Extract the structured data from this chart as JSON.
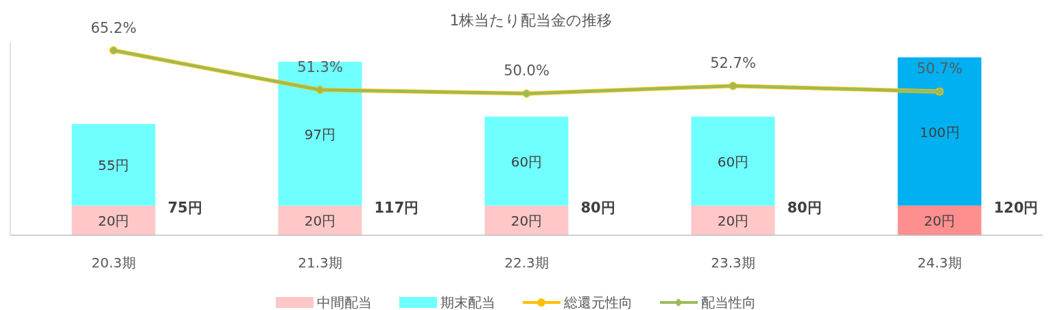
{
  "chart_data": {
    "type": "bar",
    "title": "1株当たり配当金の推移",
    "categories": [
      "20.3期",
      "21.3期",
      "22.3期",
      "23.3期",
      "24.3期"
    ],
    "stacked": true,
    "series": [
      {
        "name": "中間配当",
        "color": "#ffc7c7",
        "colors": [
          "#ffc7c7",
          "#ffc7c7",
          "#ffc7c7",
          "#ffc7c7",
          "#ff8f8f"
        ],
        "values": [
          20,
          20,
          20,
          20,
          20
        ],
        "value_labels": [
          "20円",
          "20円",
          "20円",
          "20円",
          "20円"
        ]
      },
      {
        "name": "期末配当",
        "color": "#6fffff",
        "colors": [
          "#6fffff",
          "#6fffff",
          "#6fffff",
          "#6fffff",
          "#00b0f0"
        ],
        "values": [
          55,
          97,
          60,
          60,
          100
        ],
        "value_labels": [
          "55円",
          "97円",
          "60円",
          "60円",
          "100円"
        ]
      },
      {
        "name": "総還元性向",
        "type": "line",
        "axis": "y2",
        "color": "#ffc000",
        "marker": "circle",
        "values": [
          65.2,
          51.3,
          50.0,
          52.7,
          50.7
        ],
        "value_labels": [
          "65.2%",
          "51.3%",
          "50.0%",
          "52.7%",
          "50.7%"
        ]
      },
      {
        "name": "配当性向",
        "type": "line",
        "axis": "y2",
        "color": "#9bbb59",
        "marker": "diamond",
        "values": [
          65.2,
          51.3,
          50.0,
          52.7,
          50.7
        ]
      }
    ],
    "totals": [
      "75円",
      "117円",
      "80円",
      "80円",
      "120円"
    ],
    "ylim": [
      0,
      130
    ],
    "y2lim": [
      0,
      68
    ],
    "tick_labels": "x",
    "grid": false,
    "legend": "bottom"
  }
}
